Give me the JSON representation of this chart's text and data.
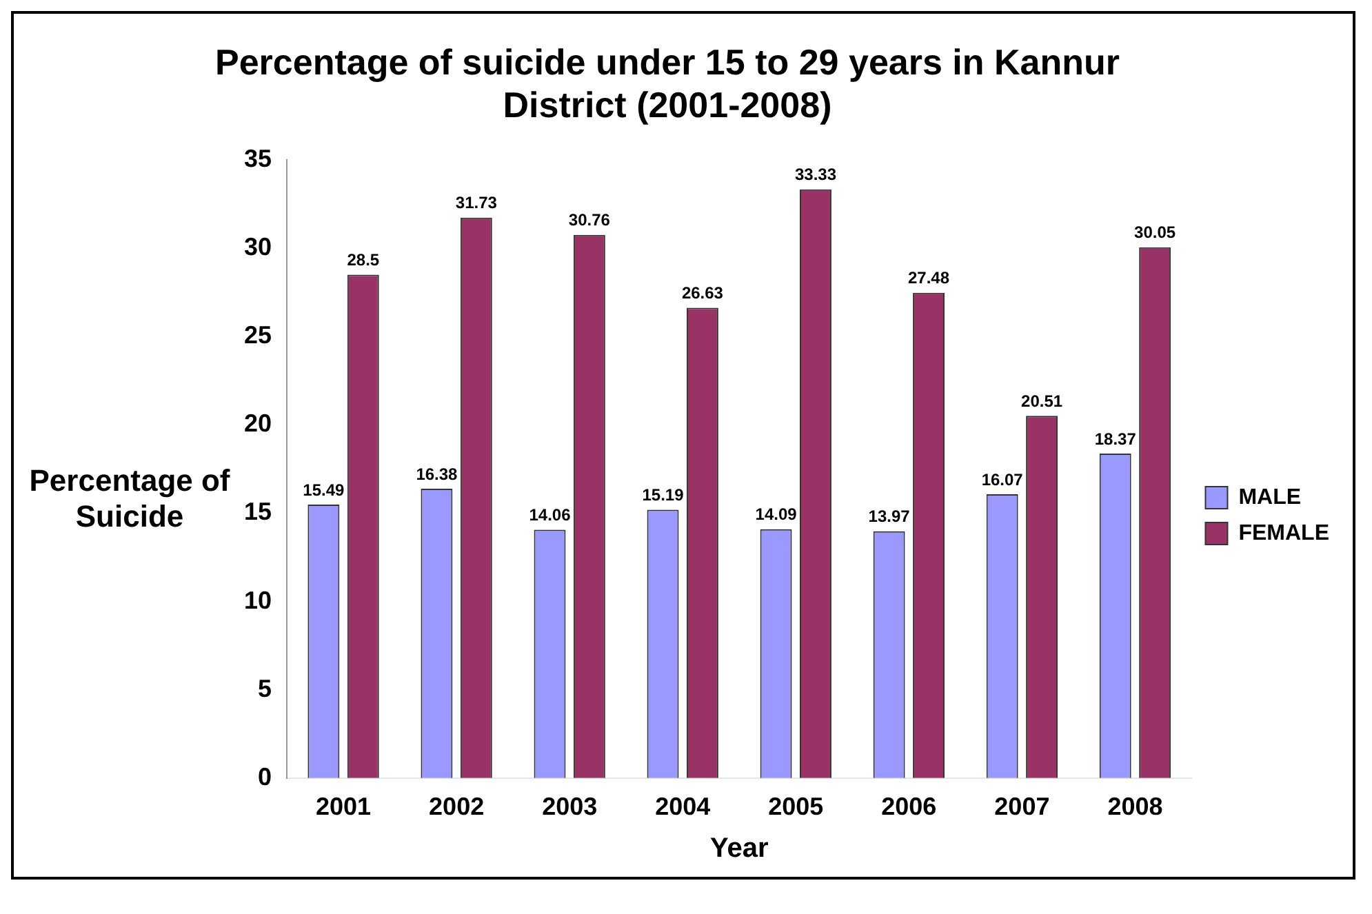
{
  "chart_data": {
    "type": "bar",
    "title": "Percentage of suicide under 15 to 29 years in Kannur District (2001-2008)",
    "xlabel": "Year",
    "ylabel": "Percentage of Suicide",
    "categories": [
      "2001",
      "2002",
      "2003",
      "2004",
      "2005",
      "2006",
      "2007",
      "2008"
    ],
    "series": [
      {
        "name": "MALE",
        "color": "#9999ff",
        "values": [
          15.49,
          16.38,
          14.06,
          15.19,
          14.09,
          13.97,
          16.07,
          18.37
        ]
      },
      {
        "name": "FEMALE",
        "color": "#993366",
        "values": [
          28.5,
          31.73,
          30.76,
          26.63,
          33.33,
          27.48,
          20.51,
          30.05
        ]
      }
    ],
    "ylim": [
      0,
      35
    ],
    "yticks": [
      0,
      5,
      10,
      15,
      20,
      25,
      30,
      35
    ],
    "grid": false,
    "legend": "right",
    "data_labels": true
  }
}
